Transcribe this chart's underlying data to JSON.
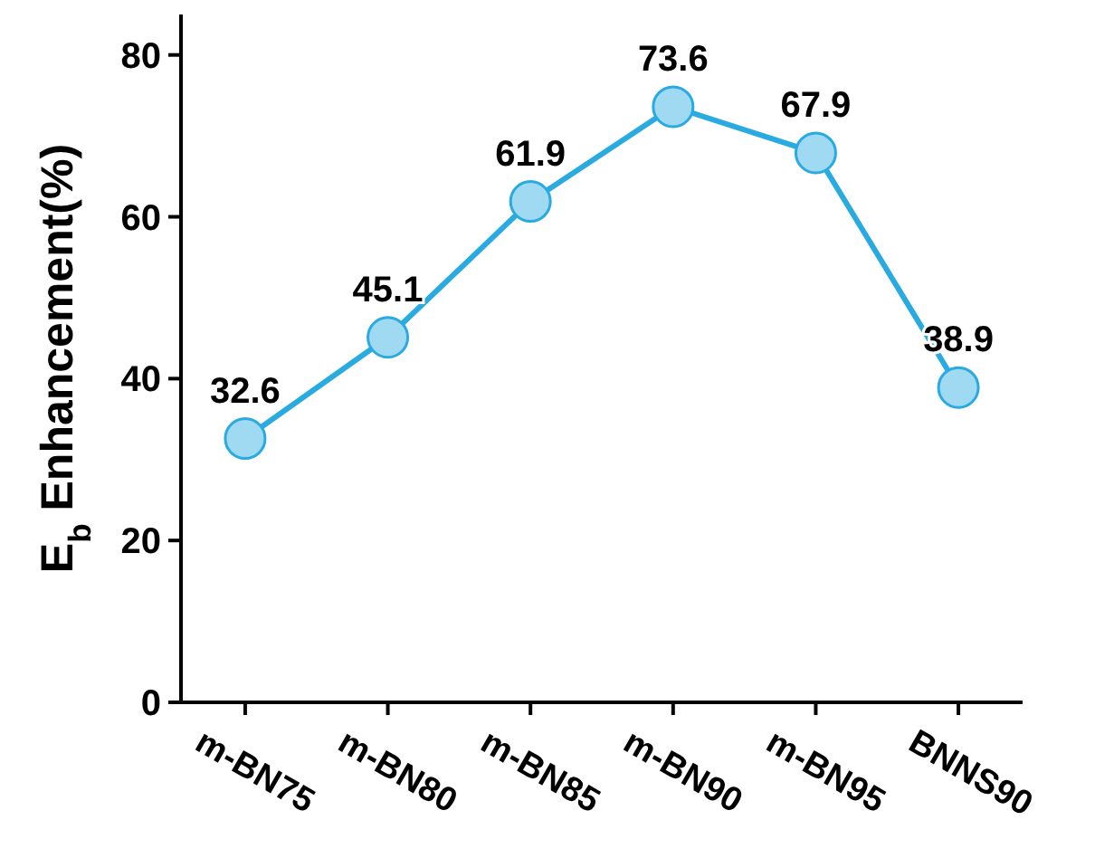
{
  "chart_data": {
    "type": "line",
    "ylabel": "E$_{b}$ Enhancement(%)",
    "categories": [
      "m-BN75",
      "m-BN80",
      "m-BN85",
      "m-BN90",
      "m-BN95",
      "BNNS90"
    ],
    "series": [
      {
        "color": "#29abe2",
        "values": [
          32.6,
          45.1,
          61.9,
          73.6,
          67.9,
          38.9
        ]
      }
    ],
    "ylim": [
      0,
      85
    ],
    "yticks": [
      0,
      20,
      40,
      60,
      80
    ],
    "marker": "circle",
    "data_labels": true,
    "grid": false
  }
}
